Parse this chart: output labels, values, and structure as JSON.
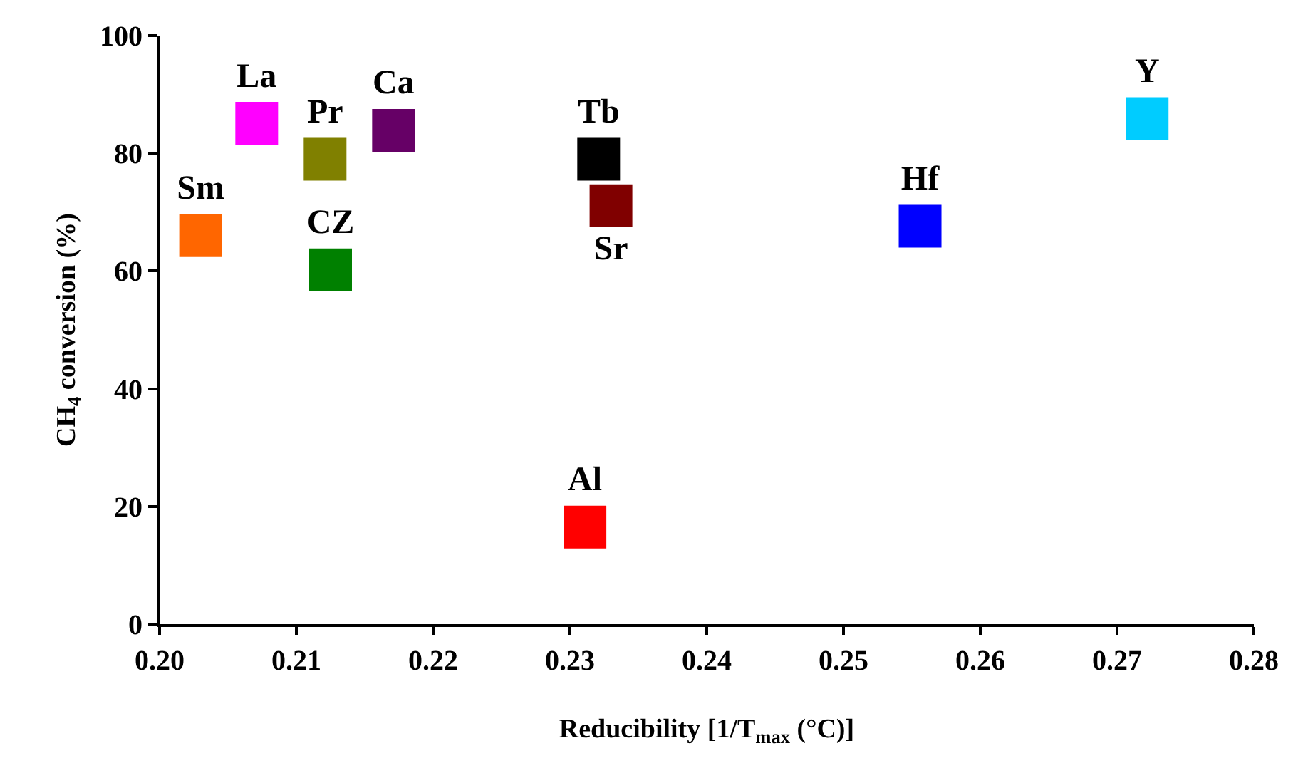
{
  "chart_data": {
    "type": "scatter",
    "xlabel": "Reducibility [1/T$_{max}$ (°C)]",
    "ylabel": "CH$_{4}$ conversion (%)",
    "xlim": [
      0.2,
      0.28
    ],
    "xticks": [
      {
        "value": 0.2,
        "label": "0.20"
      },
      0.21,
      0.22,
      0.23,
      0.24,
      0.25,
      0.26,
      0.27,
      0.28
    ],
    "ylim": [
      0,
      100
    ],
    "yticks": [
      0,
      20,
      40,
      60,
      80,
      100
    ],
    "legend": false,
    "marker": "square",
    "series": [
      {
        "name": "Sm",
        "color": "#ff6600",
        "x": [
          0.203
        ],
        "values": [
          66.0
        ]
      },
      {
        "name": "La",
        "color": "#ff00ff",
        "x": [
          0.2071
        ],
        "values": [
          85.1
        ]
      },
      {
        "name": "Pr",
        "color": "#808000",
        "x": [
          0.2121
        ],
        "values": [
          79.0
        ]
      },
      {
        "name": "Ca",
        "color": "#660066",
        "x": [
          0.2171
        ],
        "values": [
          83.9
        ]
      },
      {
        "name": "CZ",
        "color": "#008000",
        "x": [
          0.2125
        ],
        "values": [
          60.2
        ]
      },
      {
        "name": "Tb",
        "color": "#000000",
        "x": [
          0.2321
        ],
        "values": [
          79.0
        ]
      },
      {
        "name": "Sr",
        "color": "#800000",
        "x": [
          0.233
        ],
        "values": [
          71.1
        ]
      },
      {
        "name": "Al",
        "color": "#ff0000",
        "x": [
          0.2311
        ],
        "values": [
          16.5
        ]
      },
      {
        "name": "Hf",
        "color": "#0000ff",
        "x": [
          0.2556
        ],
        "values": [
          67.6
        ]
      },
      {
        "name": "Y",
        "color": "#00ccff",
        "x": [
          0.2722
        ],
        "values": [
          85.9
        ]
      }
    ]
  }
}
